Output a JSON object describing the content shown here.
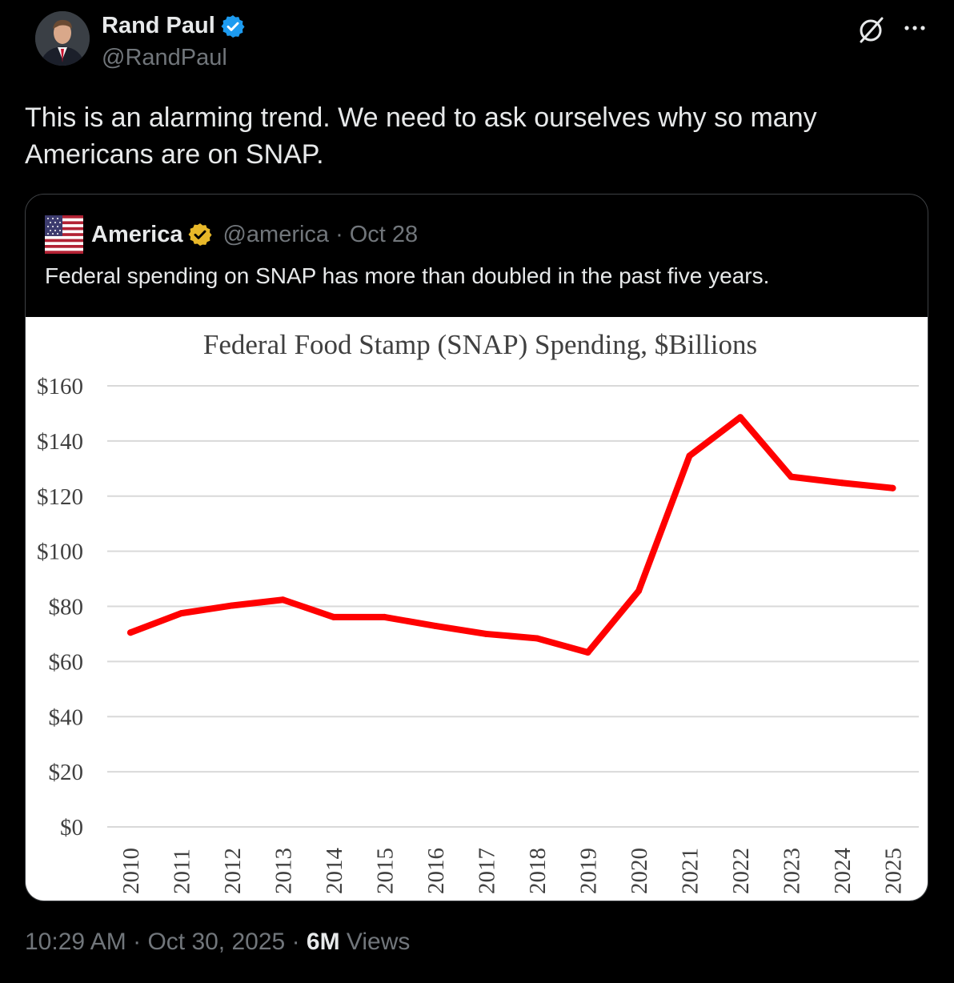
{
  "author": {
    "display_name": "Rand Paul",
    "handle": "@RandPaul",
    "verified_color": "#1d9bf0"
  },
  "post": {
    "text": "This is an alarming trend. We need to ask ourselves why so many Americans are on SNAP."
  },
  "quote": {
    "display_name": "America",
    "handle": "@america",
    "separator": "·",
    "date": "Oct 28",
    "badge_color": "#e8b829",
    "text": "Federal spending on SNAP has more than doubled in the past five years."
  },
  "chart_data": {
    "type": "line",
    "title": "Federal Food Stamp (SNAP) Spending, $Billions",
    "xlabel": "",
    "ylabel": "",
    "categories": [
      "2010",
      "2011",
      "2012",
      "2013",
      "2014",
      "2015",
      "2016",
      "2017",
      "2018",
      "2019",
      "2020",
      "2021",
      "2022",
      "2023",
      "2024",
      "2025"
    ],
    "values": [
      70.5,
      77.5,
      80.3,
      82.4,
      76.1,
      76.1,
      72.9,
      70.0,
      68.4,
      63.3,
      85.6,
      134.6,
      148.6,
      127.0,
      124.8,
      122.9
    ],
    "yticks": [
      "$0",
      "$20",
      "$40",
      "$60",
      "$80",
      "$100",
      "$120",
      "$140",
      "$160"
    ],
    "ylim": [
      0,
      160
    ],
    "grid": true,
    "line_color": "#ff0000",
    "legend": "none"
  },
  "meta": {
    "time": "10:29 AM",
    "sep1": " · ",
    "date": "Oct 30, 2025",
    "sep2": " · ",
    "views_count": "6M",
    "views_label": " Views"
  }
}
